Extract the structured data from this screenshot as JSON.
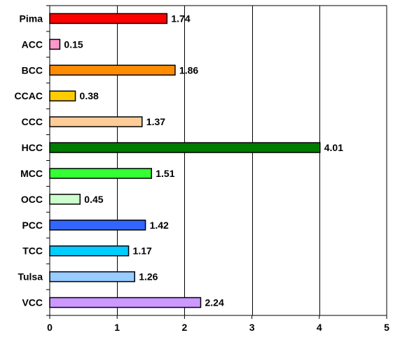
{
  "chart_data": {
    "type": "bar",
    "orientation": "horizontal",
    "title": "",
    "xlabel": "",
    "ylabel": "",
    "xlim": [
      0,
      5
    ],
    "x_ticks": [
      "0",
      "1",
      "2",
      "3",
      "4",
      "5"
    ],
    "grid": "vertical",
    "legend": "none",
    "categories": [
      "Pima",
      "ACC",
      "BCC",
      "CCAC",
      "CCC",
      "HCC",
      "MCC",
      "OCC",
      "PCC",
      "TCC",
      "Tulsa",
      "VCC"
    ],
    "values": [
      1.74,
      0.15,
      1.86,
      0.38,
      1.37,
      4.01,
      1.51,
      0.45,
      1.42,
      1.17,
      1.26,
      2.24
    ],
    "value_labels": [
      "1.74",
      "0.15",
      "1.86",
      "0.38",
      "1.37",
      "4.01",
      "1.51",
      "0.45",
      "1.42",
      "1.17",
      "1.26",
      "2.24"
    ],
    "colors": [
      "#ff0000",
      "#ff99cc",
      "#ff8c00",
      "#ffcc00",
      "#ffcc99",
      "#007a00",
      "#33ff33",
      "#ccffcc",
      "#3366ff",
      "#00ccff",
      "#99ccff",
      "#cc99ff"
    ]
  }
}
